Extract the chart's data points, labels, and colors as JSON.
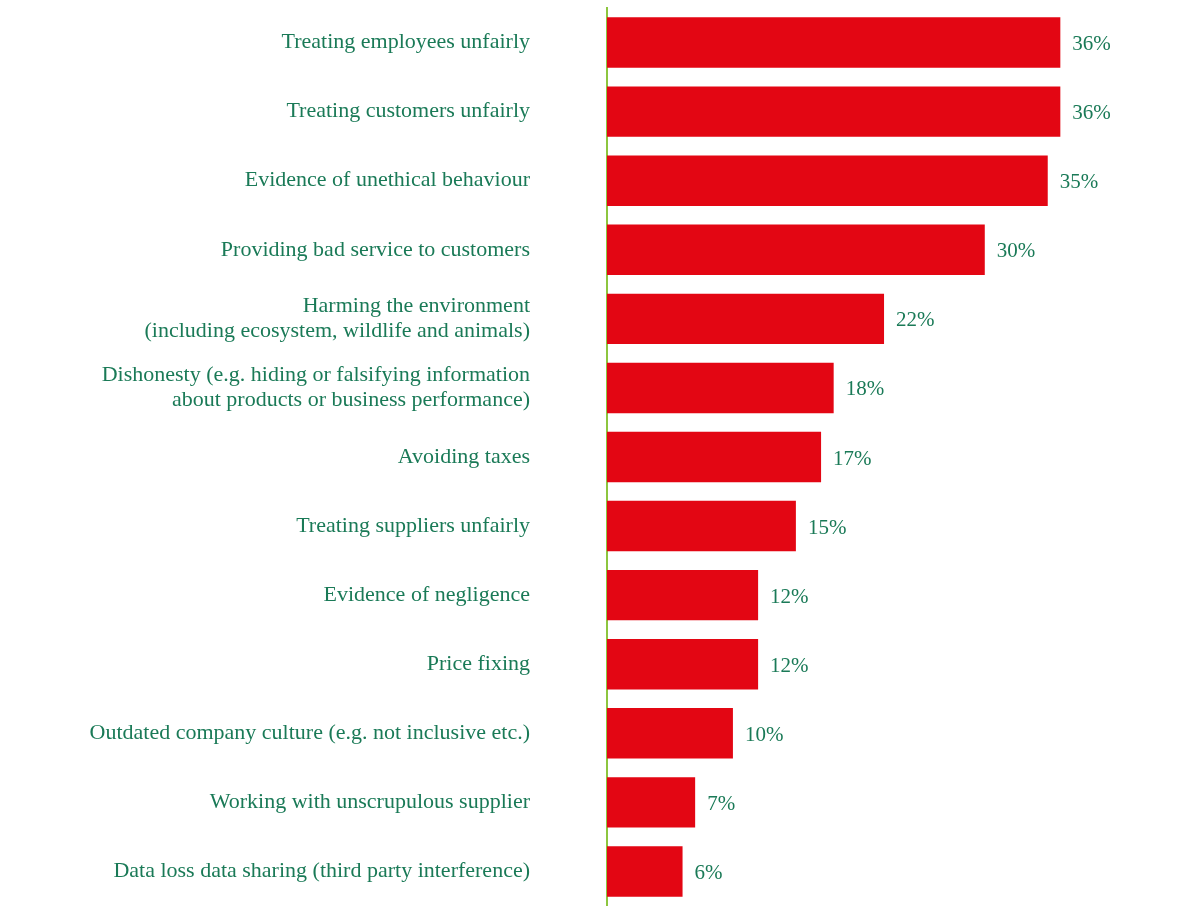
{
  "chart_data": {
    "type": "bar",
    "orientation": "horizontal",
    "categories": [
      "Treating employees unfairly",
      "Treating customers unfairly",
      "Evidence of unethical behaviour",
      "Providing bad service to customers",
      "Harming the environment\n(including ecosystem, wildlife and animals)",
      "Dishonesty (e.g. hiding or falsifying information\nabout products or business performance)",
      "Avoiding taxes",
      "Treating suppliers unfairly",
      "Evidence of negligence",
      "Price fixing",
      "Outdated company culture (e.g. not inclusive etc.)",
      "Working with unscrupulous supplier",
      "Data loss data sharing (third party interference)"
    ],
    "values": [
      36,
      36,
      35,
      30,
      22,
      18,
      17,
      15,
      12,
      12,
      10,
      7,
      6
    ],
    "value_labels": [
      "36%",
      "36%",
      "35%",
      "30%",
      "22%",
      "18%",
      "17%",
      "15%",
      "12%",
      "12%",
      "10%",
      "7%",
      "6%"
    ],
    "color": "#e30613",
    "legend": false
  }
}
